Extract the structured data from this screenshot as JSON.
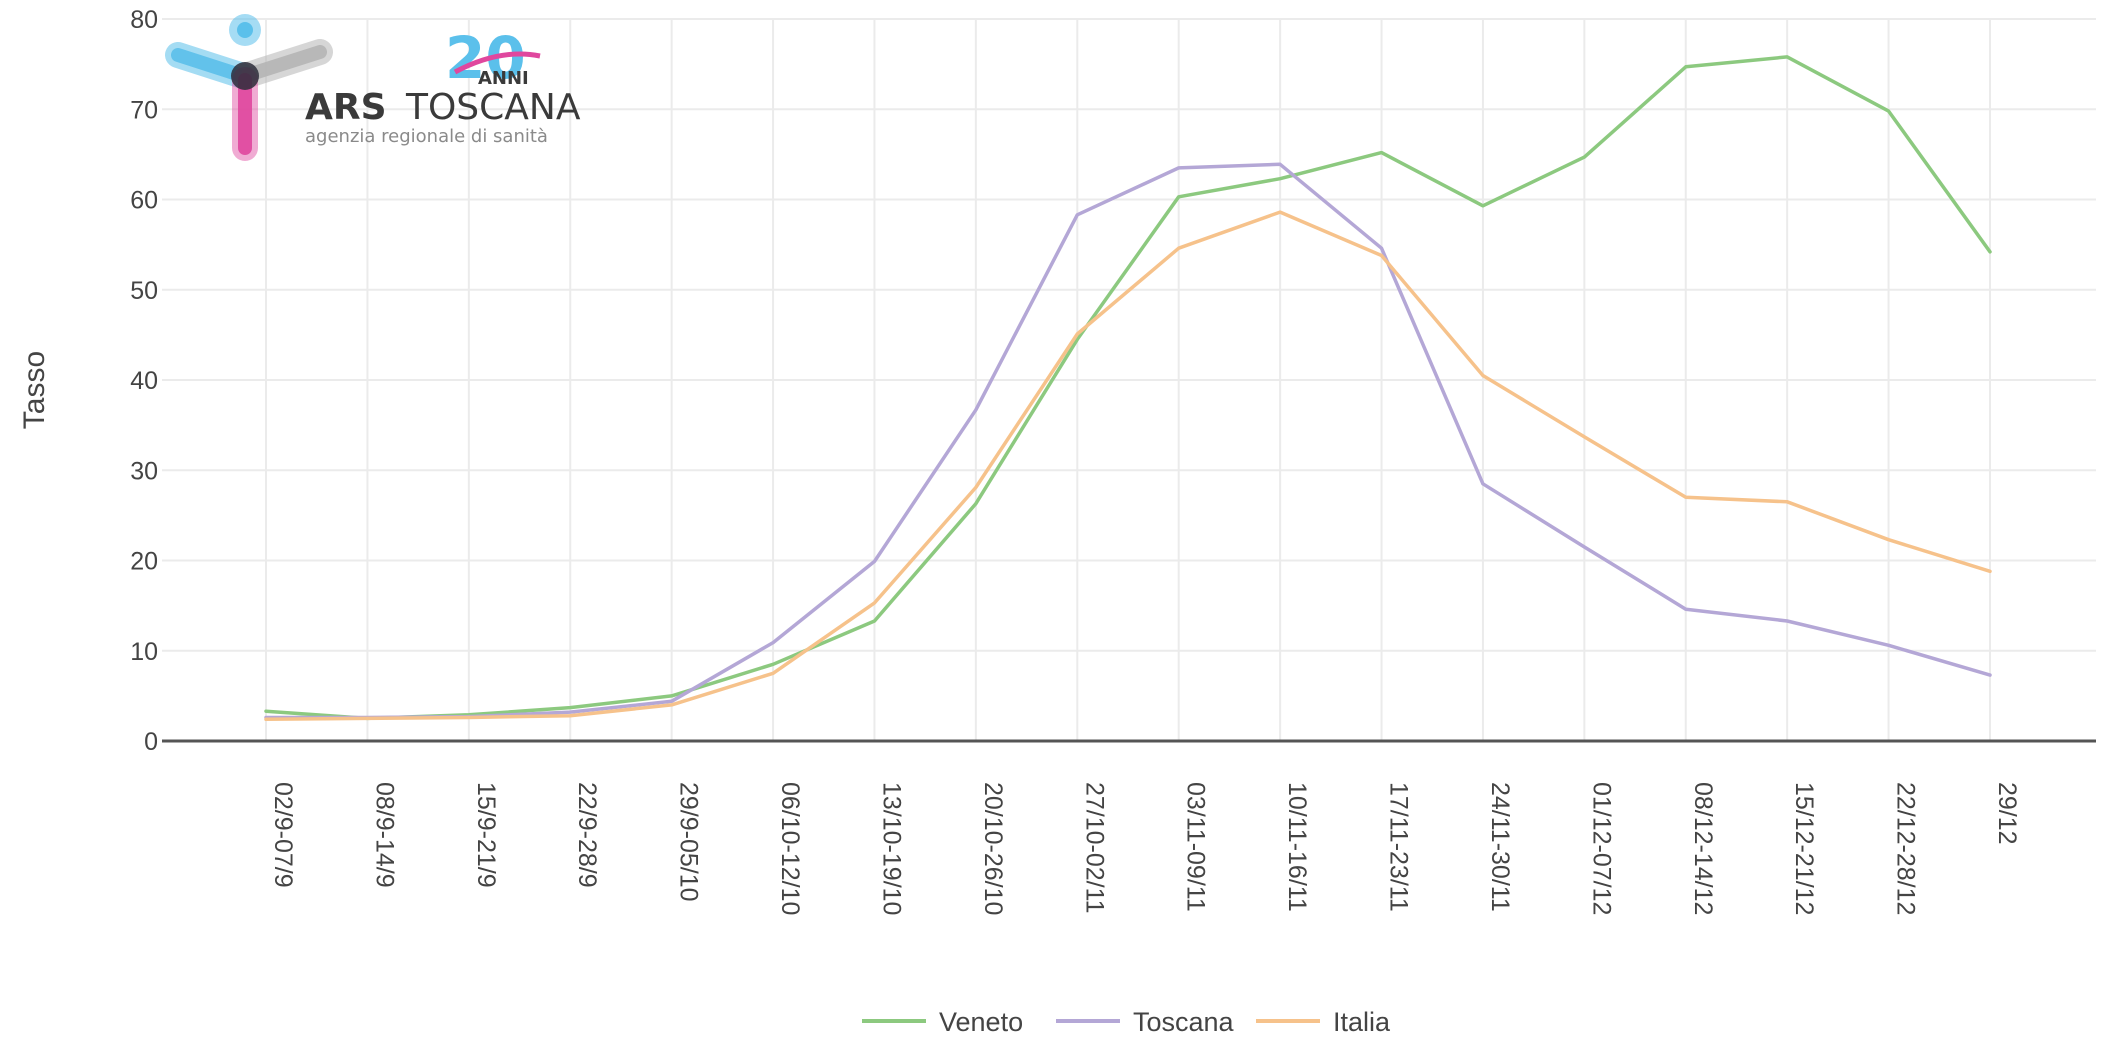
{
  "logo": {
    "anniversary_number": "20",
    "anniversary_word": "ANNI",
    "name_bold": "ARS",
    "name_regular": "TOSCANA",
    "tagline": "agenzia regionale di sanità",
    "colors": {
      "blue": "#5bc0eb",
      "gray": "#b5b5b5",
      "magenta": "#e0479e",
      "text": "#3a3a3a"
    }
  },
  "chart_data": {
    "type": "line",
    "title": "",
    "xlabel": "",
    "ylabel": "Tasso",
    "ylim": [
      0,
      80
    ],
    "yticks": [
      0,
      10,
      20,
      30,
      40,
      50,
      60,
      70,
      80
    ],
    "grid": true,
    "legend_position": "bottom-center",
    "categories": [
      "02/9-07/9",
      "08/9-14/9",
      "15/9-21/9",
      "22/9-28/9",
      "29/9-05/10",
      "06/10-12/10",
      "13/10-19/10",
      "20/10-26/10",
      "27/10-02/11",
      "03/11-09/11",
      "10/11-16/11",
      "17/11-23/11",
      "24/11-30/11",
      "01/12-07/12",
      "08/12-14/12",
      "15/12-21/12",
      "22/12-28/12",
      "29/12"
    ],
    "series": [
      {
        "name": "Veneto",
        "color": "#8cc97f",
        "values": [
          3.3,
          2.5,
          2.9,
          3.7,
          5.0,
          8.5,
          13.3,
          26.3,
          44.5,
          60.3,
          62.3,
          65.2,
          59.3,
          64.7,
          74.7,
          75.8,
          69.8,
          54.2
        ]
      },
      {
        "name": "Toscana",
        "color": "#b4a7d6",
        "values": [
          2.6,
          2.6,
          2.7,
          3.2,
          4.4,
          10.9,
          19.9,
          36.7,
          58.3,
          63.5,
          63.9,
          54.6,
          28.5,
          21.5,
          14.6,
          13.3,
          10.6,
          7.3
        ]
      },
      {
        "name": "Italia",
        "color": "#f6c28b",
        "values": [
          2.4,
          2.5,
          2.6,
          2.8,
          4.0,
          7.5,
          15.3,
          28.1,
          45.1,
          54.6,
          58.6,
          53.8,
          40.5,
          33.7,
          27.0,
          26.5,
          22.3,
          18.8
        ]
      }
    ]
  }
}
